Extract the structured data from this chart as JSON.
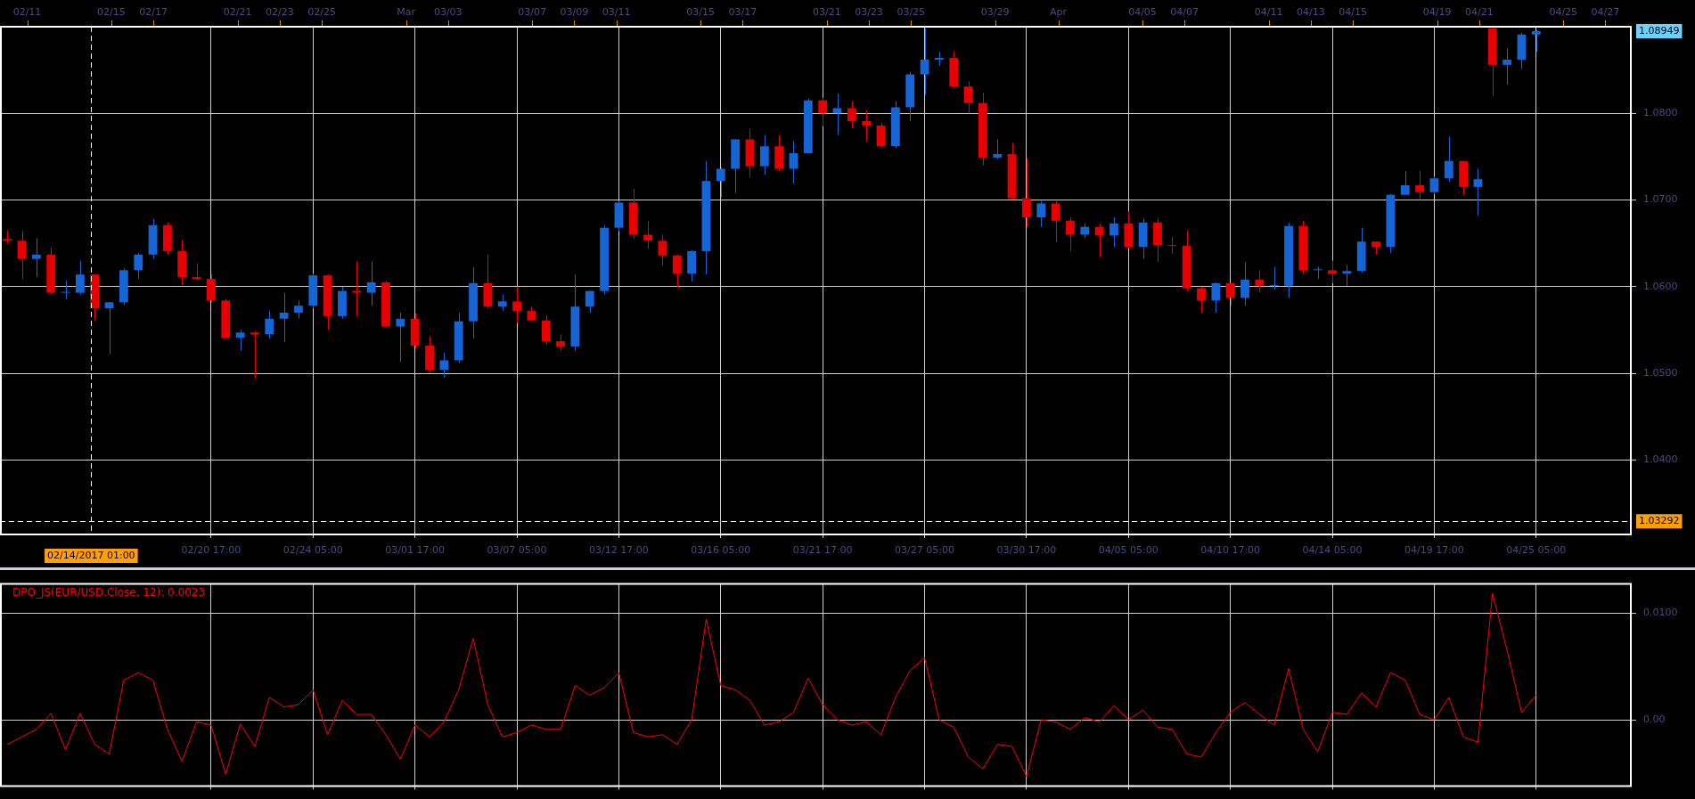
{
  "chart_data": [
    {
      "type": "candlestick",
      "categories": [
        null,
        null,
        null,
        null,
        null,
        null,
        null,
        null,
        null,
        null,
        null,
        null,
        null,
        null,
        "02/20 17:00",
        null,
        null,
        null,
        null,
        null,
        null,
        "02/24 05:00",
        null,
        null,
        null,
        null,
        null,
        null,
        "03/01 17:00",
        null,
        null,
        null,
        null,
        null,
        null,
        "03/07 05:00",
        null,
        null,
        null,
        null,
        null,
        null,
        "03/12 17:00",
        null,
        null,
        null,
        null,
        null,
        null,
        "03/16 05:00",
        null,
        null,
        null,
        null,
        null,
        null,
        "03/21 17:00",
        null,
        null,
        null,
        null,
        null,
        null,
        "03/27 05:00",
        null,
        null,
        null,
        null,
        null,
        null,
        "03/30 17:00",
        null,
        null,
        null,
        null,
        null,
        null,
        "04/05 05:00",
        null,
        null,
        null,
        null,
        null,
        null,
        "04/10 17:00",
        null,
        null,
        null,
        null,
        null,
        null,
        "04/14 05:00",
        null,
        null,
        null,
        null,
        null,
        null,
        "04/19 17:00",
        null,
        null,
        null,
        null,
        null,
        null,
        "04/25 05:00",
        null,
        null,
        null,
        null,
        null,
        null
      ],
      "ohlc": [
        [
          1.0655,
          1.0665,
          1.065,
          1.0653
        ],
        [
          1.0653,
          1.0665,
          1.0609,
          1.0632
        ],
        [
          1.0632,
          1.0656,
          1.0611,
          1.0637
        ],
        [
          1.0637,
          1.0645,
          1.0591,
          1.0593
        ],
        [
          1.0593,
          1.0607,
          1.0585,
          1.0593
        ],
        [
          1.0593,
          1.063,
          1.0591,
          1.0614
        ],
        [
          1.0614,
          1.0614,
          1.0561,
          1.0575
        ],
        [
          1.0575,
          1.0582,
          1.0522,
          1.0582
        ],
        [
          1.0582,
          1.0621,
          1.0579,
          1.0619
        ],
        [
          1.0619,
          1.0639,
          1.0609,
          1.0637
        ],
        [
          1.0637,
          1.0678,
          1.0632,
          1.0671
        ],
        [
          1.0671,
          1.0674,
          1.0637,
          1.0641
        ],
        [
          1.0641,
          1.0654,
          1.0602,
          1.0611
        ],
        [
          1.0611,
          1.0627,
          1.0607,
          1.0609
        ],
        [
          1.0609,
          1.0614,
          1.0582,
          1.0584
        ],
        [
          1.0584,
          1.0586,
          1.054,
          1.0541
        ],
        [
          1.0541,
          1.055,
          1.0526,
          1.0547
        ],
        [
          1.0547,
          1.0549,
          1.0494,
          1.0545
        ],
        [
          1.0545,
          1.0572,
          1.054,
          1.0563
        ],
        [
          1.0563,
          1.0593,
          1.0536,
          1.057
        ],
        [
          1.057,
          1.0584,
          1.0563,
          1.0578
        ],
        [
          1.0578,
          1.0615,
          1.0575,
          1.0613
        ],
        [
          1.0613,
          1.0614,
          1.055,
          1.0566
        ],
        [
          1.0566,
          1.06,
          1.0563,
          1.0595
        ],
        [
          1.0595,
          1.0629,
          1.0566,
          1.0593
        ],
        [
          1.0593,
          1.0629,
          1.0578,
          1.0605
        ],
        [
          1.0605,
          1.0607,
          1.0552,
          1.0554
        ],
        [
          1.0554,
          1.057,
          1.0513,
          1.0563
        ],
        [
          1.0563,
          1.0569,
          1.0529,
          1.0532
        ],
        [
          1.0532,
          1.0543,
          1.0501,
          1.0504
        ],
        [
          1.0504,
          1.0524,
          1.0495,
          1.0515
        ],
        [
          1.0515,
          1.057,
          1.0512,
          1.056
        ],
        [
          1.056,
          1.0622,
          1.054,
          1.0604
        ],
        [
          1.0604,
          1.0637,
          1.0575,
          1.0577
        ],
        [
          1.0577,
          1.0591,
          1.0572,
          1.0583
        ],
        [
          1.0583,
          1.06,
          1.0558,
          1.0572
        ],
        [
          1.0572,
          1.0577,
          1.056,
          1.0561
        ],
        [
          1.0561,
          1.0567,
          1.0533,
          1.0537
        ],
        [
          1.0537,
          1.0545,
          1.0526,
          1.0531
        ],
        [
          1.0531,
          1.0614,
          1.0526,
          1.0577
        ],
        [
          1.0577,
          1.0595,
          1.057,
          1.0595
        ],
        [
          1.0595,
          1.0671,
          1.0591,
          1.0668
        ],
        [
          1.0668,
          1.0699,
          1.0664,
          1.0697
        ],
        [
          1.0697,
          1.0713,
          1.0655,
          1.066
        ],
        [
          1.066,
          1.0676,
          1.0644,
          1.0653
        ],
        [
          1.0653,
          1.066,
          1.0624,
          1.0636
        ],
        [
          1.0636,
          1.0637,
          1.0599,
          1.0615
        ],
        [
          1.0615,
          1.0642,
          1.0606,
          1.0641
        ],
        [
          1.0641,
          1.0745,
          1.0614,
          1.0722
        ],
        [
          1.0722,
          1.0738,
          1.0703,
          1.0736
        ],
        [
          1.0736,
          1.077,
          1.0708,
          1.077
        ],
        [
          1.077,
          1.0782,
          1.0726,
          1.0739
        ],
        [
          1.0739,
          1.0775,
          1.0729,
          1.0762
        ],
        [
          1.0762,
          1.0775,
          1.0733,
          1.0736
        ],
        [
          1.0736,
          1.0768,
          1.0719,
          1.0754
        ],
        [
          1.0754,
          1.0817,
          1.0754,
          1.0815
        ],
        [
          1.0815,
          1.0818,
          1.0785,
          1.08
        ],
        [
          1.08,
          1.0823,
          1.0775,
          1.0806
        ],
        [
          1.0806,
          1.0814,
          1.0783,
          1.0791
        ],
        [
          1.0791,
          1.0803,
          1.0768,
          1.0786
        ],
        [
          1.0786,
          1.0789,
          1.076,
          1.0762
        ],
        [
          1.0762,
          1.0814,
          1.076,
          1.0807
        ],
        [
          1.0807,
          1.0848,
          1.0791,
          1.0845
        ],
        [
          1.0845,
          1.0898,
          1.0821,
          1.0862
        ],
        [
          1.0862,
          1.0871,
          1.0855,
          1.0864
        ],
        [
          1.0864,
          1.0871,
          1.083,
          1.0831
        ],
        [
          1.0831,
          1.0837,
          1.08,
          1.0812
        ],
        [
          1.0812,
          1.0824,
          1.074,
          1.0749
        ],
        [
          1.0749,
          1.077,
          1.0747,
          1.0753
        ],
        [
          1.0753,
          1.0766,
          1.0701,
          1.0702
        ],
        [
          1.0702,
          1.0748,
          1.0669,
          1.068
        ],
        [
          1.068,
          1.0699,
          1.0669,
          1.0696
        ],
        [
          1.0696,
          1.0699,
          1.0651,
          1.0676
        ],
        [
          1.0676,
          1.068,
          1.0641,
          1.066
        ],
        [
          1.066,
          1.0673,
          1.0656,
          1.0669
        ],
        [
          1.0669,
          1.0673,
          1.0634,
          1.0659
        ],
        [
          1.0659,
          1.068,
          1.0646,
          1.0673
        ],
        [
          1.0673,
          1.0687,
          1.0644,
          1.0646
        ],
        [
          1.0646,
          1.0679,
          1.0632,
          1.0674
        ],
        [
          1.0674,
          1.0679,
          1.0628,
          1.0648
        ],
        [
          1.0648,
          1.0657,
          1.0638,
          1.0647
        ],
        [
          1.0647,
          1.0665,
          1.0595,
          1.0598
        ],
        [
          1.0598,
          1.06,
          1.057,
          1.0584
        ],
        [
          1.0584,
          1.0605,
          1.057,
          1.0604
        ],
        [
          1.0604,
          1.0604,
          1.0578,
          1.0587
        ],
        [
          1.0587,
          1.0628,
          1.0578,
          1.0608
        ],
        [
          1.0608,
          1.0619,
          1.0593,
          1.0601
        ],
        [
          1.0601,
          1.0623,
          1.0597,
          1.0601
        ],
        [
          1.0601,
          1.0674,
          1.0587,
          1.067
        ],
        [
          1.067,
          1.0676,
          1.0615,
          1.0619
        ],
        [
          1.0619,
          1.0623,
          1.0609,
          1.0619
        ],
        [
          1.0619,
          1.063,
          1.0604,
          1.0615
        ],
        [
          1.0615,
          1.0625,
          1.0601,
          1.0618
        ],
        [
          1.0618,
          1.0668,
          1.0616,
          1.0652
        ],
        [
          1.0652,
          1.0652,
          1.0637,
          1.0646
        ],
        [
          1.0646,
          1.0707,
          1.0639,
          1.0706
        ],
        [
          1.0706,
          1.0733,
          1.0706,
          1.0717
        ],
        [
          1.0717,
          1.0734,
          1.07,
          1.0709
        ],
        [
          1.0709,
          1.0727,
          1.0707,
          1.0725
        ],
        [
          1.0725,
          1.0773,
          1.0721,
          1.0745
        ],
        [
          1.0745,
          1.0745,
          1.0706,
          1.0715
        ],
        [
          1.0715,
          1.0736,
          1.0682,
          1.0724
        ],
        [
          1.0898,
          1.0899,
          1.082,
          1.0856
        ],
        [
          1.0856,
          1.0875,
          1.0833,
          1.0862
        ],
        [
          1.0862,
          1.0893,
          1.0851,
          1.0891
        ],
        [
          1.0891,
          1.0896,
          1.0871,
          1.08949
        ],
        null,
        null,
        null,
        null,
        null,
        null
      ],
      "colors": [
        "#e80000",
        "#e80000",
        "#1565d6",
        "#e80000",
        "#1565d6",
        "#1565d6",
        "#e80000",
        "#1565d6",
        "#1565d6",
        "#1565d6",
        "#1565d6",
        "#e80000",
        "#e80000",
        "#e80000",
        "#e80000",
        "#e80000",
        "#1565d6",
        "#e80000",
        "#1565d6",
        "#1565d6",
        "#1565d6",
        "#1565d6",
        "#e80000",
        "#1565d6",
        "#e80000",
        "#1565d6",
        "#e80000",
        "#1565d6",
        "#e80000",
        "#e80000",
        "#1565d6",
        "#1565d6",
        "#1565d6",
        "#e80000",
        "#1565d6",
        "#e80000",
        "#e80000",
        "#e80000",
        "#e80000",
        "#1565d6",
        "#1565d6",
        "#1565d6",
        "#1565d6",
        "#e80000",
        "#e80000",
        "#e80000",
        "#e80000",
        "#1565d6",
        "#1565d6",
        "#1565d6",
        "#1565d6",
        "#e80000",
        "#1565d6",
        "#e80000",
        "#1565d6",
        "#1565d6",
        "#e80000",
        "#1565d6",
        "#e80000",
        "#e80000",
        "#e80000",
        "#1565d6",
        "#1565d6",
        "#1565d6",
        "#1565d6",
        "#e80000",
        "#e80000",
        "#e80000",
        "#1565d6",
        "#e80000",
        "#e80000",
        "#1565d6",
        "#e80000",
        "#e80000",
        "#1565d6",
        "#e80000",
        "#1565d6",
        "#e80000",
        "#1565d6",
        "#e80000",
        "#e80000",
        "#e80000",
        "#e80000",
        "#1565d6",
        "#e80000",
        "#1565d6",
        "#e80000",
        "#1565d6",
        "#1565d6",
        "#e80000",
        "#1565d6",
        "#e80000",
        "#1565d6",
        "#1565d6",
        "#e80000",
        "#1565d6",
        "#1565d6",
        "#e80000",
        "#1565d6",
        "#1565d6",
        "#e80000",
        "#1565d6",
        "#e80000",
        "#1565d6",
        "#1565d6",
        "#1565d6",
        null,
        null,
        null,
        null,
        null,
        null
      ],
      "ylim": [
        1.0314,
        1.09
      ],
      "yticks": [
        {
          "value": 1.04,
          "label": "1.0400"
        },
        {
          "value": 1.05,
          "label": "1.0500"
        },
        {
          "value": 1.06,
          "label": "1.0600"
        },
        {
          "value": 1.07,
          "label": "1.0700"
        },
        {
          "value": 1.08,
          "label": "1.0800"
        }
      ],
      "x2lim": [
        "2017-02-09T17:00",
        "2017-04-28T05:00"
      ],
      "x2ticks": [
        {
          "value": "2017-02-11",
          "label": "02/11"
        },
        {
          "value": "2017-02-15",
          "label": "02/15"
        },
        {
          "value": "2017-02-17",
          "label": "02/17"
        },
        {
          "value": "2017-02-21",
          "label": "02/21"
        },
        {
          "value": "2017-02-23",
          "label": "02/23"
        },
        {
          "value": "2017-02-25",
          "label": "02/25"
        },
        {
          "value": "2017-03-01",
          "label": "Mar"
        },
        {
          "value": "2017-03-03",
          "label": "03/03"
        },
        {
          "value": "2017-03-07",
          "label": "03/07"
        },
        {
          "value": "2017-03-09",
          "label": "03/09"
        },
        {
          "value": "2017-03-11",
          "label": "03/11"
        },
        {
          "value": "2017-03-15",
          "label": "03/15"
        },
        {
          "value": "2017-03-17",
          "label": "03/17"
        },
        {
          "value": "2017-03-21",
          "label": "03/21"
        },
        {
          "value": "2017-03-23",
          "label": "03/23"
        },
        {
          "value": "2017-03-25",
          "label": "03/25"
        },
        {
          "value": "2017-03-29",
          "label": "03/29"
        },
        {
          "value": "2017-04-01",
          "label": "Apr"
        },
        {
          "value": "2017-04-05",
          "label": "04/05"
        },
        {
          "value": "2017-04-07",
          "label": "04/07"
        },
        {
          "value": "2017-04-11",
          "label": "04/11"
        },
        {
          "value": "2017-04-13",
          "label": "04/13"
        },
        {
          "value": "2017-04-15",
          "label": "04/15"
        },
        {
          "value": "2017-04-19",
          "label": "04/19"
        },
        {
          "value": "2017-04-21",
          "label": "04/21"
        },
        {
          "value": "2017-04-25",
          "label": "04/25"
        },
        {
          "value": "2017-04-27",
          "label": "04/27"
        }
      ],
      "ref_lines": [
        {
          "axis": "y",
          "value": 1.03292,
          "label": "1.03292",
          "color": "#ffffff",
          "line_style": "dashed"
        },
        {
          "axis": "x2",
          "value": "2017-02-14T01:00",
          "label": "02/14/2017 01:00",
          "color": "#ffffff",
          "line_style": "dashed"
        }
      ],
      "annotations": [
        "1.08949"
      ],
      "grid": true
    },
    {
      "type": "line",
      "title": "DPO_JS(EUR/USD.Close, 12): 0.0023",
      "categories": [
        null,
        null,
        null,
        null,
        null,
        null,
        null,
        null,
        null,
        null,
        null,
        null,
        null,
        null,
        null,
        null,
        null,
        null,
        null,
        null,
        null,
        null,
        null,
        null,
        null,
        null,
        null,
        null,
        null,
        null,
        null,
        null,
        null,
        null,
        null,
        null,
        null,
        null,
        null,
        null,
        null,
        null,
        null,
        null,
        null,
        null,
        null,
        null,
        null,
        null,
        null,
        null,
        null,
        null,
        null,
        null,
        null,
        null,
        null,
        null,
        null,
        null,
        null,
        null,
        null,
        null,
        null,
        null,
        null,
        null,
        null,
        null,
        null,
        null,
        null,
        null,
        null,
        null,
        null,
        null,
        null,
        null,
        null,
        null,
        null,
        null,
        null,
        null,
        null,
        null,
        null,
        null,
        null,
        null,
        null,
        null,
        null,
        null,
        null,
        null,
        null,
        null,
        null,
        null,
        null,
        null,
        null,
        null,
        null,
        null,
        null,
        null
      ],
      "series": [
        {
          "color": "#ff0000",
          "values": [
            -0.0023,
            -0.0016,
            -0.0009,
            0.0006,
            -0.0028,
            0.0006,
            -0.0023,
            -0.0032,
            0.0037,
            0.0044,
            0.0037,
            -0.0009,
            -0.0039,
            -0.0002,
            -0.0005,
            -0.0051,
            -0.0004,
            -0.0025,
            0.0021,
            0.0012,
            0.0014,
            0.0028,
            -0.0014,
            0.0018,
            0.0005,
            0.0005,
            -0.0014,
            -0.0037,
            -0.0005,
            -0.0016,
            -0.0002,
            0.0028,
            0.0076,
            0.0014,
            -0.0016,
            -0.0012,
            -0.0005,
            -0.0009,
            -0.0009,
            0.0032,
            0.0023,
            0.003,
            0.0044,
            -0.0012,
            -0.0016,
            -0.0014,
            -0.0023,
            0,
            0.0094,
            0.0032,
            0.0028,
            0.0018,
            -0.0005,
            -0.0002,
            0.0007,
            0.0039,
            0.0014,
            0,
            -0.0005,
            -0.0002,
            -0.0014,
            0.0021,
            0.0046,
            0.0058,
            0,
            -0.0007,
            -0.0035,
            -0.0046,
            -0.0023,
            -0.0025,
            -0.0053,
            0,
            -0.0002,
            -0.0009,
            0.0002,
            -0.0002,
            0.0013,
            0,
            0.0009,
            -0.0007,
            -0.0009,
            -0.0032,
            -0.0035,
            -0.0012,
            0.0007,
            0.0016,
            0.0005,
            -0.0005,
            0.0048,
            -0.0009,
            -0.003,
            0.0007,
            0.0005,
            0.0025,
            0.0012,
            0.0044,
            0.0037,
            0.0005,
            0,
            0.0021,
            -0.0016,
            -0.0021,
            0.0118,
            0.0065,
            0.0007,
            0.0023,
            null,
            null,
            null,
            null,
            null,
            null
          ]
        }
      ],
      "ylim": [
        -0.0062,
        0.0127
      ],
      "yticks": [
        {
          "value": 0,
          "label": "0.00"
        },
        {
          "value": 0.01,
          "label": "0.0100"
        }
      ],
      "tick_labels": "y",
      "grid": true
    }
  ]
}
